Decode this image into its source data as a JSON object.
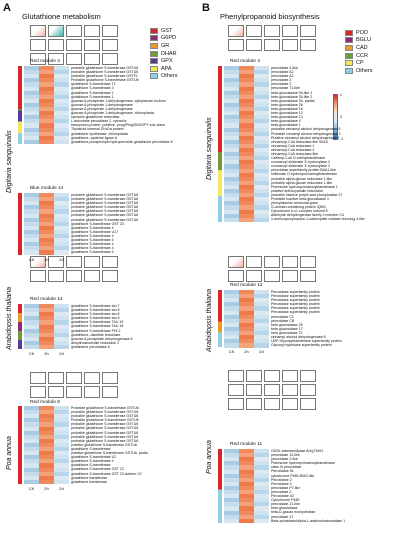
{
  "panel_a": {
    "letter": "A",
    "title": "Glutathione metabolism",
    "legend": [
      {
        "label": "GST",
        "color": "#d7262c"
      },
      {
        "label": "G6PD",
        "color": "#8b2a7a"
      },
      {
        "label": "GR",
        "color": "#ea9b2d"
      },
      {
        "label": "DHAR",
        "color": "#6f9b3c"
      },
      {
        "label": "GPX",
        "color": "#5a3b99"
      },
      {
        "label": "APA",
        "color": "#f2e85a"
      },
      {
        "label": "Others",
        "color": "#8fd0e8"
      }
    ],
    "species": [
      "Digitaria sanguinalis",
      "Arabidopsis thaliana",
      "Poa annua"
    ],
    "xlabels": [
      "CK",
      "2h",
      "2d"
    ],
    "modules": [
      {
        "label": "Red module 4",
        "genes": [
          "probable glutathione S-transferase GSTU6",
          "probable glutathione S-transferase GSTU6",
          "probable glutathione S-transferase GSTF1",
          "Probable glutathione S-transferase GSTU6",
          "glutathione S-transferase T1",
          "glutathione S-transferase 3",
          "glutathione S-transferase 1",
          "glutathione S-transferase 1",
          "glucose-6-phosphate 1-dehydrogenase, cytoplasmic isoform",
          "glucose-6-phosphate 1-dehydrogenase",
          "glucose-6-phosphate 1-dehydrogenase",
          "glucose-6-phosphate 1-dehydrogenase, chloroplastic",
          "cytosolic glutathione reductase",
          "L-ascorbate peroxidase 2, cytosolic",
          "transposon protein, putative, pong/Ping/SNOOPY sub-class",
          "Thylakoid lumenal 29 kDa protein",
          "glutathione synthetase, chloroplastic",
          "glutathione--cysteine ligase A",
          "glutathione-phospholipid hydroperoxide glutathione peroxidase 6"
        ]
      },
      {
        "label": "Blue module 14",
        "genes": [
          "probable glutathione S-transferase GSTU6",
          "probable glutathione S-transferase GSTU6",
          "probable glutathione S-transferase GSTU6",
          "probable glutathione S-transferase GSTU6",
          "probable glutathione S-transferase GSTU6",
          "probable glutathione S-transferase GSTU6",
          "probable glutathione S-transferase GSTU6",
          "glutathione S-transferase GST 23",
          "glutathione S-transferase 4",
          "glutathione S-transferase U17",
          "glutathione S-transferase 4",
          "glutathione S-transferase 4",
          "glutathione S-transferase 4",
          "glutathione S-transferase 4",
          "glutathione S-transferase 4"
        ]
      },
      {
        "label": "Red module 14",
        "genes": [
          "glutathione S-transferase tau 7",
          "glutathione S-transferase tau 5",
          "glutathione S-transferase tau 8",
          "glutathione S-transferase tau 9",
          "glutathione S-transferase TAU 19",
          "glutathione S-transferase TAU 18",
          "glutathione S-transferase PHI 2",
          "glutathione--disulfide reductase",
          "glucose-6-phosphate dehydrogenase 6",
          "dehydroascorbate reductase 2",
          "glutathione peroxidase 6"
        ]
      },
      {
        "label": "Red module 8",
        "genes": [
          "Probable glutathione S-transferase GSTU6",
          "probable glutathione S-transferase GSTU6",
          "probable glutathione S-transferase GSTU6",
          "Probable glutathione S-transferase GSTU6",
          "probable glutathione S-transferase GSTU6",
          "probable glutathione S-transferase GSTU6",
          "probable glutathione S-transferase GSTU6",
          "probable glutathione S-transferase GSTU6",
          "probable glutathione S-transferase GSTU6",
          "putative glutathione S-transferase GSTU6",
          "glutathione S-transferase",
          "putative glutathione S-transferase GSTU6, partial",
          "glutathione S-transferase U2",
          "glutathione S-transferase 4",
          "glutathione S-transferase",
          "glutathione S-transferase GST 23",
          "glutathione S-transferase GST 23 isoform X2",
          "glutathione transferase",
          "glutathione transferase"
        ]
      }
    ]
  },
  "panel_b": {
    "letter": "B",
    "title": "Phenylpropanoid biosynthesis",
    "legend": [
      {
        "label": "POD",
        "color": "#d7262c"
      },
      {
        "label": "BGLU",
        "color": "#8b2a7a"
      },
      {
        "label": "CAD",
        "color": "#ea9b2d"
      },
      {
        "label": "CCR",
        "color": "#6f9b3c"
      },
      {
        "label": "CP",
        "color": "#f2e85a"
      },
      {
        "label": "Others",
        "color": "#8fd0e8"
      }
    ],
    "colorbar_ticks": [
      "1",
      "0",
      "-1"
    ],
    "xlabels": [
      "CK",
      "2h",
      "2d"
    ],
    "modules": [
      {
        "label": "Red module 4",
        "genes": [
          "peroxidase 4-like",
          "peroxidase A2",
          "peroxidase A2",
          "peroxidase 2",
          "peroxidase 2",
          "peroxidase 71-like",
          "beta-glucosidase 30-like 1",
          "beta-glucosidase 30-like 2",
          "beta-glucosidase 30, partial",
          "beta-glucosidase 26",
          "beta-glucosidase 16",
          "beta-glucosidase 12",
          "beta-glucosidase 13",
          "beta-glucosidase 4",
          "beta-glucosidase 1",
          "probable cinnamyl alcohol dehydrogenase 5",
          "Probable cinnamyl alcohol dehydrogenase 1",
          "Putative cinnamyl alcohol dehydrogenase 4",
          "cinnamoyl-CoA reductase-like SNL6",
          "cinnamoyl-CoA reductase 1",
          "cinnamoyl-CoA reductase 2",
          "cinnamoyl-CoA reductase-like",
          "Caffeoyl-CoA O-methyltransferase",
          "coumaroyl shikimate 3'-hydroxylase 2",
          "coumaroyl shikimate 3'-hydroxylase 2",
          "peroxidase superfamily protein BAA1-like",
          "shikimate O-hydroxycinnamoyltransferase",
          "probable alpha-glucan reductase 1-like",
          "probable alpha-glucan reductase 1-like",
          "Putrescine hydroxycinnamoyltransferase 1",
          "putative anthocyanidin reductase",
          "probable inactive purple acid phosphatase 27",
          "Probable inactive beta-glucosidase 1",
          "phenylalanine ammonia-lyase",
          "G-domain-containing protein IQM3",
          "Cytochrome b-c1 complex subunit 8",
          "Aldehyde dehydrogenase family 2 member C4",
          "1-aminocyclopropane-1-carboxylate oxidase homolog 4-like"
        ]
      },
      {
        "label": "Red module 12",
        "genes": [
          "Peroxidase superfamily protein",
          "Peroxidase superfamily protein",
          "Peroxidase superfamily protein",
          "Peroxidase superfamily protein",
          "Peroxidase superfamily protein",
          "Peroxidase superfamily protein",
          "peroxidase C1",
          "peroxidase CB",
          "beta glucosidase 25",
          "beta glucosidase 17",
          "beta glucosidase 27",
          "cinnamyl alcohol dehydrogenase 8",
          "UDP-Glycosyltransferase superfamily protein",
          "Glycosyl hydrolase superfamily protein"
        ]
      },
      {
        "label": "Red module 11",
        "genes": [
          "GDSL esterase/lipase At1g71691",
          "peroxidase 12-like",
          "peroxidase 2-like",
          "Putrescine hydroxycinnamoyltransferase",
          "class III peroxidase",
          "Peroxidase 51",
          "cytochrome P450 89A2-like",
          "Peroxidase 2",
          "Peroxidase 4",
          "peroxidase P7-like",
          "peroxidase 2",
          "Peroxidase 43",
          "Cytochrome P450",
          "peroxidase 21-like",
          "beta glucosidase",
          "beta-D-glucan exohydrolase",
          "peroxidase 21",
          "Beta-xylosidase/alpha-L-arabinofuranosidase 1"
        ]
      }
    ]
  }
}
